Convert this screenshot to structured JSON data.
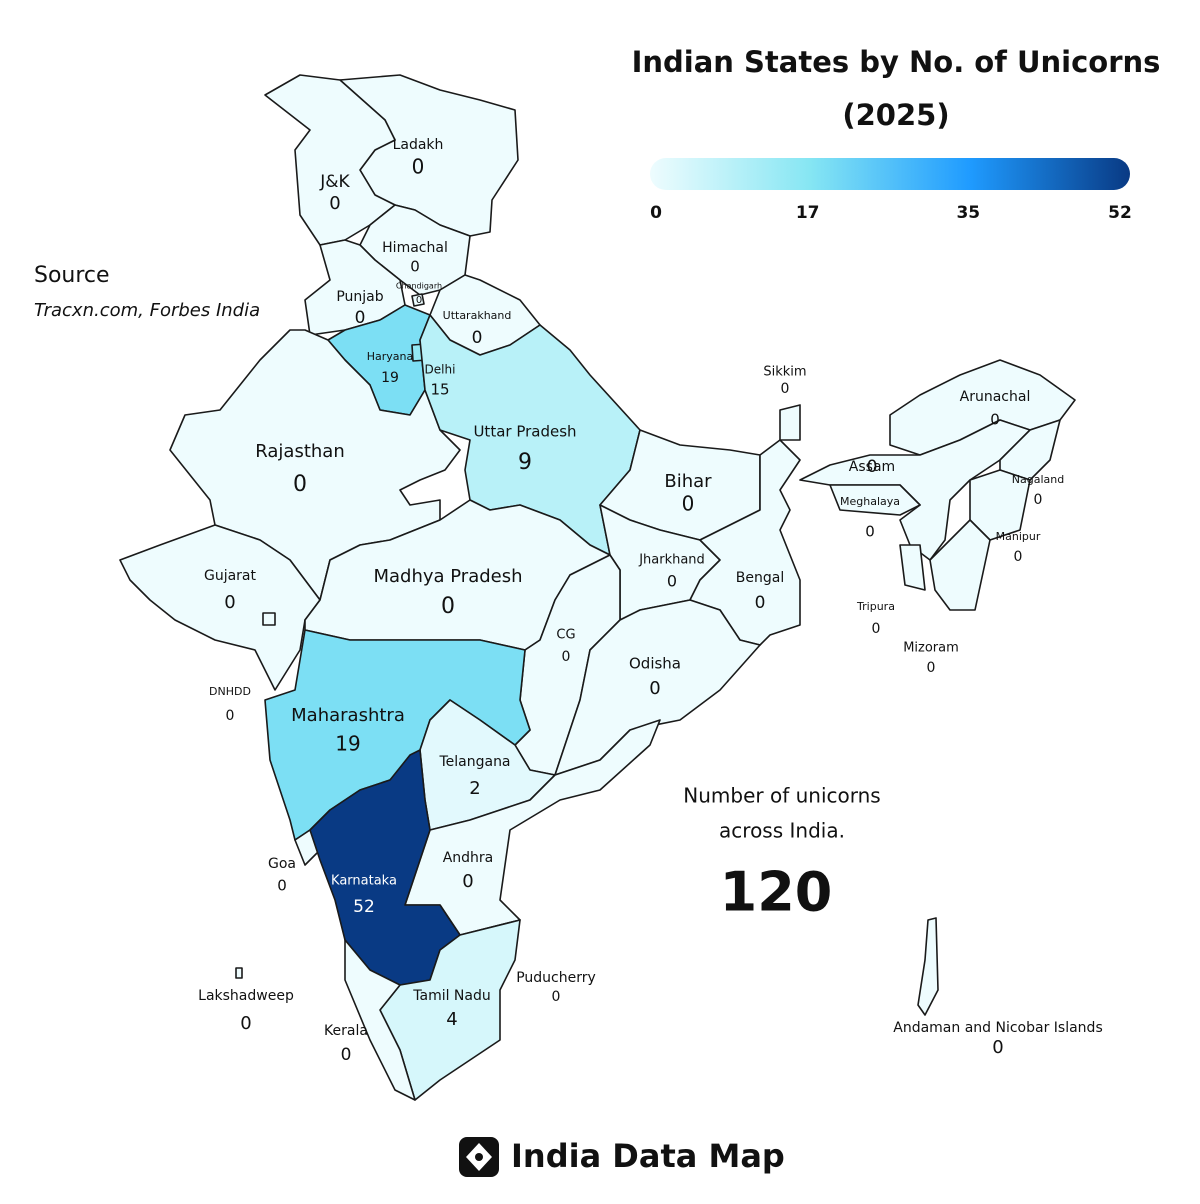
{
  "title": "Indian States by No. of Unicorns",
  "subtitle": "(2025)",
  "colorbar": {
    "min": 0,
    "max": 52,
    "ticks": [
      0,
      17,
      35,
      52
    ],
    "colors": [
      "#eefcfe",
      "#86e6f3",
      "#1f9bff",
      "#093a84"
    ]
  },
  "source": {
    "label": "Source",
    "text": "Tracxn.com, Forbes India"
  },
  "states": [
    {
      "name": "Ladakh",
      "value": 0
    },
    {
      "name": "J&K",
      "value": 0
    },
    {
      "name": "Himachal",
      "value": 0
    },
    {
      "name": "Punjab",
      "value": 0
    },
    {
      "name": "Chandigarh",
      "value": 0
    },
    {
      "name": "Uttarakhand",
      "value": 0
    },
    {
      "name": "Haryana",
      "value": 19
    },
    {
      "name": "Delhi",
      "value": 15
    },
    {
      "name": "Rajasthan",
      "value": 0
    },
    {
      "name": "Uttar Pradesh",
      "value": 9
    },
    {
      "name": "Bihar",
      "value": 0
    },
    {
      "name": "Sikkim",
      "value": 0
    },
    {
      "name": "Arunachal",
      "value": 0
    },
    {
      "name": "Assam",
      "value": 0
    },
    {
      "name": "Meghalaya",
      "value": 0
    },
    {
      "name": "Nagaland",
      "value": 0
    },
    {
      "name": "Manipur",
      "value": 0
    },
    {
      "name": "Tripura",
      "value": 0
    },
    {
      "name": "Mizoram",
      "value": 0
    },
    {
      "name": "Jharkhand",
      "value": 0
    },
    {
      "name": "Bengal",
      "value": 0
    },
    {
      "name": "Gujarat",
      "value": 0
    },
    {
      "name": "Madhya Pradesh",
      "value": 0
    },
    {
      "name": "CG",
      "value": 0
    },
    {
      "name": "Odisha",
      "value": 0
    },
    {
      "name": "DNHDD",
      "value": 0
    },
    {
      "name": "Maharashtra",
      "value": 19
    },
    {
      "name": "Telangana",
      "value": 2
    },
    {
      "name": "Goa",
      "value": 0
    },
    {
      "name": "Andhra",
      "value": 0
    },
    {
      "name": "Karnataka",
      "value": 52
    },
    {
      "name": "Puducherry",
      "value": 0
    },
    {
      "name": "Tamil Nadu",
      "value": 4
    },
    {
      "name": "Lakshadweep",
      "value": 0
    },
    {
      "name": "Kerala",
      "value": 0
    },
    {
      "name": "Andaman and Nicobar Islands",
      "value": 0
    }
  ],
  "total": {
    "label_line1": "Number of unicorns",
    "label_line2": "across India.",
    "value": 120
  },
  "brand": "India Data Map"
}
